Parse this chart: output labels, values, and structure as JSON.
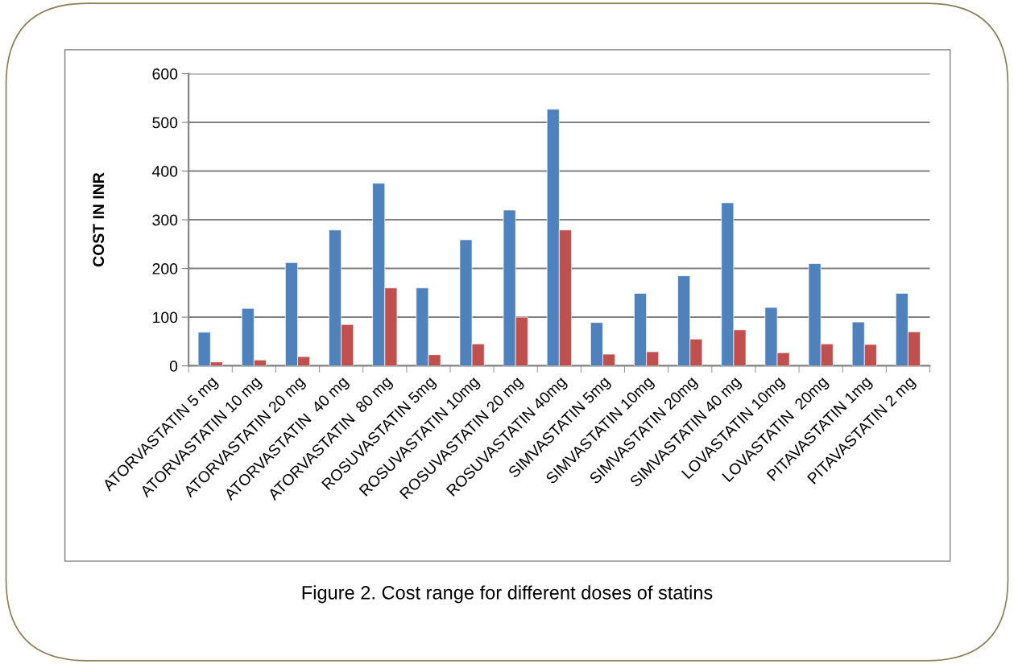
{
  "chart_data": {
    "type": "bar",
    "title": "Figure 2. Cost range for different doses of statins",
    "ylabel": "COST IN INR",
    "categories": [
      "ATORVASTATIN 5 mg",
      "ATORVASTATIN 10 mg",
      "ATORVASTATIN 20 mg",
      "ATORVASTATIN  40 mg",
      "ATORVASTATIN  80 mg",
      "ROSUVASTATIN 5mg",
      "ROSUVASTATIN 10mg",
      "ROSUVASTATIN 20 mg",
      "ROSUVASTATIN 40mg",
      "SIMVASTATIN 5mg",
      "SIMVASTATIN 10mg",
      "SIMVASTATIN 20mg",
      "SIMVASTATIN 40 mg",
      "LOVASTATIN 10mg",
      "LOVASTATIN  20mg",
      "PITAVASTATIN 1mg",
      "PITAVASTATIN 2 mg"
    ],
    "series": [
      {
        "color": "#4f81bd",
        "values": [
          69,
          118,
          212,
          279,
          375,
          160,
          259,
          320,
          527,
          89,
          149,
          185,
          335,
          120,
          210,
          90,
          149
        ]
      },
      {
        "color": "#c0504d",
        "values": [
          8,
          12,
          19,
          85,
          160,
          23,
          45,
          100,
          279,
          24,
          29,
          55,
          74,
          27,
          45,
          44,
          70
        ]
      }
    ],
    "ylim": [
      0,
      600
    ],
    "yticks": [
      0,
      100,
      200,
      300,
      400,
      500,
      600
    ],
    "grid": "y",
    "legend": false
  }
}
